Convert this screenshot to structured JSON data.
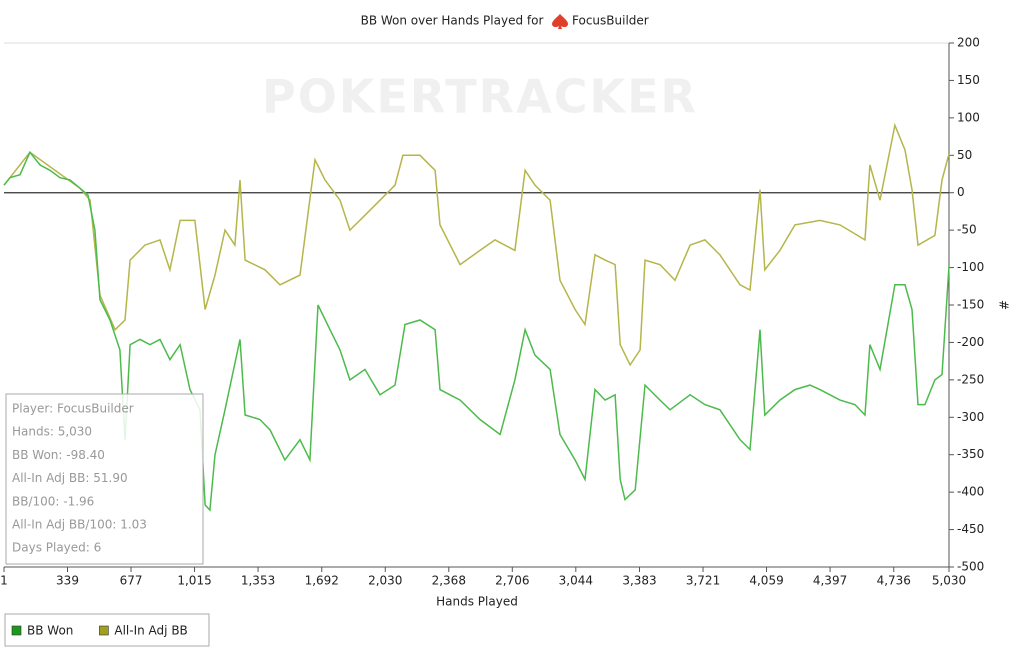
{
  "chart_data": {
    "type": "line",
    "title": "BB Won over Hands Played for",
    "player": "FocusBuilder",
    "watermark": "POKERTRACKER",
    "x_label": "Hands Played",
    "y_label": "#",
    "xlim": [
      1,
      5030
    ],
    "ylim": [
      -500,
      200
    ],
    "xticks": [
      1,
      339,
      677,
      {
        "value": 1015,
        "label": "1,015"
      },
      {
        "value": 1353,
        "label": "1,353"
      },
      {
        "value": 1692,
        "label": "1,692"
      },
      {
        "value": 2030,
        "label": "2,030"
      },
      {
        "value": 2368,
        "label": "2,368"
      },
      {
        "value": 2706,
        "label": "2,706"
      },
      {
        "value": 3044,
        "label": "3,044"
      },
      {
        "value": 3383,
        "label": "3,383"
      },
      {
        "value": 3721,
        "label": "3,721"
      },
      {
        "value": 4059,
        "label": "4,059"
      },
      {
        "value": 4397,
        "label": "4,397"
      },
      {
        "value": 4736,
        "label": "4,736"
      },
      {
        "value": 5030,
        "label": "5,030"
      }
    ],
    "yticks": [
      200,
      150,
      100,
      50,
      0,
      -50,
      -100,
      -150,
      -200,
      -250,
      -300,
      -350,
      -400,
      -450,
      -500
    ],
    "zero_line": 0,
    "series": [
      {
        "name": "BB Won",
        "color": "#4cbb4c",
        "legend_color": "#1a9a1a",
        "x": [
          1,
          33,
          86,
          139,
          193,
          246,
          299,
          352,
          405,
          448,
          485,
          512,
          565,
          618,
          645,
          672,
          725,
          778,
          831,
          884,
          938,
          991,
          1044,
          1071,
          1097,
          1124,
          1177,
          1257,
          1284,
          1363,
          1417,
          1496,
          1576,
          1629,
          1672,
          1736,
          1789,
          1842,
          1922,
          2002,
          2082,
          2135,
          2215,
          2295,
          2321,
          2428,
          2534,
          2641,
          2720,
          2774,
          2827,
          2907,
          2960,
          3040,
          3093,
          3146,
          3200,
          3253,
          3280,
          3306,
          3360,
          3412,
          3492,
          3545,
          3652,
          3731,
          3811,
          3918,
          3971,
          4024,
          4050,
          4130,
          4210,
          4290,
          4343,
          4450,
          4530,
          4583,
          4609,
          4663,
          4742,
          4796,
          4833,
          4865,
          4902,
          4955,
          4993,
          5030
        ],
        "values": [
          10,
          20,
          24,
          54,
          37,
          30,
          20,
          17,
          6,
          -3,
          -50,
          -143,
          -170,
          -210,
          -330,
          -203,
          -196,
          -203,
          -196,
          -223,
          -203,
          -263,
          -290,
          -417,
          -424,
          -350,
          -290,
          -196,
          -297,
          -303,
          -317,
          -357,
          -330,
          -357,
          -150,
          -183,
          -210,
          -250,
          -236,
          -270,
          -257,
          -176,
          -170,
          -183,
          -263,
          -277,
          -303,
          -323,
          -250,
          -183,
          -217,
          -236,
          -323,
          -357,
          -383,
          -263,
          -277,
          -270,
          -383,
          -410,
          -397,
          -257,
          -277,
          -290,
          -270,
          -283,
          -290,
          -330,
          -343,
          -183,
          -297,
          -277,
          -263,
          -257,
          -263,
          -277,
          -283,
          -297,
          -203,
          -236,
          -123,
          -123,
          -156,
          -283,
          -283,
          -250,
          -243,
          -98
        ]
      },
      {
        "name": "All-In Adj BB",
        "color": "#b5b54a",
        "legend_color": "#a0a020",
        "x": [
          1,
          139,
          405,
          459,
          512,
          592,
          645,
          672,
          751,
          831,
          884,
          938,
          1017,
          1071,
          1124,
          1177,
          1230,
          1257,
          1284,
          1390,
          1470,
          1576,
          1656,
          1709,
          1789,
          1842,
          1922,
          2002,
          2082,
          2124,
          2215,
          2295,
          2321,
          2428,
          2534,
          2614,
          2720,
          2774,
          2827,
          2907,
          2960,
          3040,
          3093,
          3146,
          3200,
          3253,
          3280,
          3333,
          3386,
          3412,
          3492,
          3572,
          3652,
          3731,
          3811,
          3918,
          3971,
          4024,
          4050,
          4130,
          4210,
          4343,
          4450,
          4583,
          4609,
          4663,
          4742,
          4796,
          4833,
          4865,
          4955,
          4993,
          5030
        ],
        "values": [
          10,
          54,
          6,
          -10,
          -137,
          -183,
          -170,
          -90,
          -70,
          -63,
          -103,
          -37,
          -37,
          -156,
          -110,
          -50,
          -70,
          17,
          -90,
          -103,
          -123,
          -110,
          44,
          17,
          -10,
          -50,
          -30,
          -10,
          10,
          50,
          50,
          30,
          -43,
          -96,
          -77,
          -63,
          -77,
          30,
          10,
          -10,
          -117,
          -156,
          -176,
          -83,
          -90,
          -96,
          -203,
          -230,
          -210,
          -90,
          -96,
          -117,
          -70,
          -63,
          -83,
          -123,
          -130,
          4,
          -103,
          -77,
          -43,
          -37,
          -43,
          -63,
          37,
          -10,
          90,
          57,
          4,
          -70,
          -57,
          17,
          51.9
        ]
      }
    ],
    "info_box": [
      "Player: FocusBuilder",
      "Hands: 5,030",
      "BB Won: -98.40",
      "All-In Adj BB: 51.90",
      "BB/100: -1.96",
      "All-In Adj BB/100: 1.03",
      "Days Played: 6"
    ]
  }
}
